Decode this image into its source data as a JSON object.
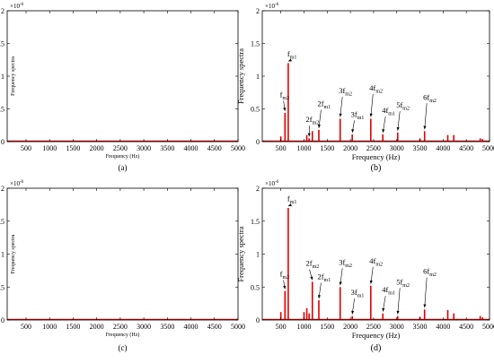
{
  "chart_data": [
    {
      "panel_label": "(a)",
      "type": "line",
      "xlabel": "Frequency (Hz)",
      "ylabel": "Frequency spectra",
      "y_exponent_label": "×10",
      "y_exponent_power": "-6",
      "xlim": [
        100,
        5000
      ],
      "ylim": [
        0,
        2
      ],
      "xticks": [
        "500",
        "1000",
        "1500",
        "2000",
        "2500",
        "3000",
        "3500",
        "4000",
        "4500",
        "5000"
      ],
      "yticks": [
        "0",
        "0.5",
        "1",
        "1.5",
        "2"
      ],
      "xtick_values": [
        500,
        1000,
        1500,
        2000,
        2500,
        3000,
        3500,
        4000,
        4500,
        5000
      ],
      "ytick_values": [
        0,
        0.5,
        1,
        1.5,
        2
      ],
      "line_color": "#e00000",
      "peaks": [],
      "annotations": []
    },
    {
      "panel_label": "(b)",
      "type": "line",
      "xlabel": "Frequency (Hz)",
      "ylabel": "Frequency spectra",
      "y_exponent_label": "×10",
      "y_exponent_power": "-6",
      "xlim": [
        100,
        5000
      ],
      "ylim": [
        0,
        2
      ],
      "xticks": [
        "500",
        "1000",
        "1500",
        "2000",
        "2500",
        "3000",
        "3500",
        "4000",
        "4500",
        "5000"
      ],
      "yticks": [
        "0",
        "0.5",
        "1",
        "1.5",
        "2"
      ],
      "xtick_values": [
        500,
        1000,
        1500,
        2000,
        2500,
        3000,
        3500,
        4000,
        4500,
        5000
      ],
      "ytick_values": [
        0,
        0.5,
        1,
        1.5,
        2
      ],
      "line_color": "#e00000",
      "peaks": [
        {
          "x": 500,
          "y": 0.08
        },
        {
          "x": 590,
          "y": 0.44
        },
        {
          "x": 660,
          "y": 1.2
        },
        {
          "x": 1060,
          "y": 0.1
        },
        {
          "x": 1110,
          "y": 0.05
        },
        {
          "x": 1180,
          "y": 0.16
        },
        {
          "x": 1320,
          "y": 0.18
        },
        {
          "x": 1780,
          "y": 0.35
        },
        {
          "x": 2040,
          "y": 0.11
        },
        {
          "x": 2440,
          "y": 0.35
        },
        {
          "x": 2700,
          "y": 0.11
        },
        {
          "x": 3020,
          "y": 0.14
        },
        {
          "x": 3500,
          "y": 0.05
        },
        {
          "x": 3600,
          "y": 0.16
        },
        {
          "x": 4100,
          "y": 0.1
        },
        {
          "x": 4230,
          "y": 0.1
        },
        {
          "x": 4800,
          "y": 0.05
        },
        {
          "x": 4850,
          "y": 0.04
        }
      ],
      "annotations": [
        {
          "base": "f",
          "sub": "m1",
          "sup": "",
          "x": 660,
          "y": 1.2,
          "tx": 640,
          "ty": 1.3
        },
        {
          "base": "f",
          "sub": "m2",
          "sup": "",
          "x": 590,
          "y": 0.44,
          "tx": 480,
          "ty": 0.68
        },
        {
          "base": "2f",
          "sub": "m2",
          "sup": "",
          "x": 1110,
          "y": 0.05,
          "tx": 1040,
          "ty": 0.3
        },
        {
          "base": "2f",
          "sub": "m1",
          "sup": "",
          "x": 1320,
          "y": 0.18,
          "tx": 1290,
          "ty": 0.54
        },
        {
          "base": "3f",
          "sub": "m2",
          "sup": "",
          "x": 1780,
          "y": 0.35,
          "tx": 1750,
          "ty": 0.74
        },
        {
          "base": "3f",
          "sub": "m1",
          "sup": "",
          "x": 2040,
          "y": 0.11,
          "tx": 2010,
          "ty": 0.38
        },
        {
          "base": "4f",
          "sub": "m2",
          "sup": "",
          "x": 2440,
          "y": 0.35,
          "tx": 2410,
          "ty": 0.78
        },
        {
          "base": "4f",
          "sub": "m1",
          "sup": "",
          "x": 2700,
          "y": 0.11,
          "tx": 2680,
          "ty": 0.44
        },
        {
          "base": "5f",
          "sub": "m2",
          "sup": "",
          "x": 3020,
          "y": 0.14,
          "tx": 2990,
          "ty": 0.52
        },
        {
          "base": "6f",
          "sub": "m2",
          "sup": "",
          "x": 3600,
          "y": 0.16,
          "tx": 3570,
          "ty": 0.64
        }
      ]
    },
    {
      "panel_label": "(c)",
      "type": "line",
      "xlabel": "Frequency (Hz)",
      "ylabel": "Frequency spectra",
      "y_exponent_label": "×10",
      "y_exponent_power": "-6",
      "xlim": [
        100,
        5000
      ],
      "ylim": [
        0,
        2
      ],
      "xticks": [
        "500",
        "1000",
        "1500",
        "2000",
        "2500",
        "3000",
        "3500",
        "4000",
        "4500",
        "5000"
      ],
      "yticks": [
        "0",
        "0.5",
        "1",
        "1.5",
        "2"
      ],
      "xtick_values": [
        500,
        1000,
        1500,
        2000,
        2500,
        3000,
        3500,
        4000,
        4500,
        5000
      ],
      "ytick_values": [
        0,
        0.5,
        1,
        1.5,
        2
      ],
      "line_color": "#e00000",
      "peaks": [],
      "annotations": []
    },
    {
      "panel_label": "(d)",
      "type": "line",
      "xlabel": "Frequency (Hz)",
      "ylabel": "Frequency spectra",
      "y_exponent_label": "×10",
      "y_exponent_power": "-6",
      "xlim": [
        100,
        5000
      ],
      "ylim": [
        0,
        2
      ],
      "xticks": [
        "500",
        "1000",
        "1500",
        "2000",
        "2500",
        "3000",
        "3500",
        "4000",
        "4500",
        "5000"
      ],
      "yticks": [
        "0",
        "0.5",
        "1",
        "1.5",
        "2"
      ],
      "xtick_values": [
        500,
        1000,
        1500,
        2000,
        2500,
        3000,
        3500,
        4000,
        4500,
        5000
      ],
      "ytick_values": [
        0,
        0.5,
        1,
        1.5,
        2
      ],
      "line_color": "#e00000",
      "peaks": [
        {
          "x": 500,
          "y": 0.12
        },
        {
          "x": 590,
          "y": 0.44
        },
        {
          "x": 660,
          "y": 1.7
        },
        {
          "x": 1000,
          "y": 0.12
        },
        {
          "x": 1060,
          "y": 0.18
        },
        {
          "x": 1110,
          "y": 0.1
        },
        {
          "x": 1180,
          "y": 0.58
        },
        {
          "x": 1320,
          "y": 0.3
        },
        {
          "x": 1780,
          "y": 0.5
        },
        {
          "x": 2040,
          "y": 0.06
        },
        {
          "x": 2440,
          "y": 0.52
        },
        {
          "x": 2700,
          "y": 0.1
        },
        {
          "x": 3020,
          "y": 0.06
        },
        {
          "x": 3500,
          "y": 0.05
        },
        {
          "x": 3600,
          "y": 0.16
        },
        {
          "x": 4100,
          "y": 0.15
        },
        {
          "x": 4230,
          "y": 0.1
        },
        {
          "x": 4800,
          "y": 0.06
        },
        {
          "x": 4850,
          "y": 0.04
        }
      ],
      "annotations": [
        {
          "base": "f",
          "sub": "m1",
          "sup": "",
          "x": 660,
          "y": 1.7,
          "tx": 640,
          "ty": 1.8
        },
        {
          "base": "f",
          "sub": "m2",
          "sup": "",
          "x": 590,
          "y": 0.44,
          "tx": 480,
          "ty": 0.66
        },
        {
          "base": "2f",
          "sub": "m2",
          "sup": "",
          "x": 1180,
          "y": 0.58,
          "tx": 1040,
          "ty": 0.82
        },
        {
          "base": "2f",
          "sub": "m1",
          "sup": "",
          "x": 1320,
          "y": 0.3,
          "tx": 1290,
          "ty": 0.62
        },
        {
          "base": "3f",
          "sub": "m2",
          "sup": "",
          "x": 1780,
          "y": 0.5,
          "tx": 1750,
          "ty": 0.84
        },
        {
          "base": "3f",
          "sub": "m1",
          "sup": "",
          "x": 2040,
          "y": 0.06,
          "tx": 2010,
          "ty": 0.38
        },
        {
          "base": "4f",
          "sub": "m2",
          "sup": "",
          "x": 2440,
          "y": 0.52,
          "tx": 2410,
          "ty": 0.86
        },
        {
          "base": "4f",
          "sub": "m1",
          "sup": "",
          "x": 2700,
          "y": 0.1,
          "tx": 2680,
          "ty": 0.42
        },
        {
          "base": "5f",
          "sub": "m2",
          "sup": "",
          "x": 3020,
          "y": 0.06,
          "tx": 2990,
          "ty": 0.54
        },
        {
          "base": "6f",
          "sub": "m2",
          "sup": "",
          "x": 3600,
          "y": 0.16,
          "tx": 3570,
          "ty": 0.7
        }
      ]
    }
  ]
}
